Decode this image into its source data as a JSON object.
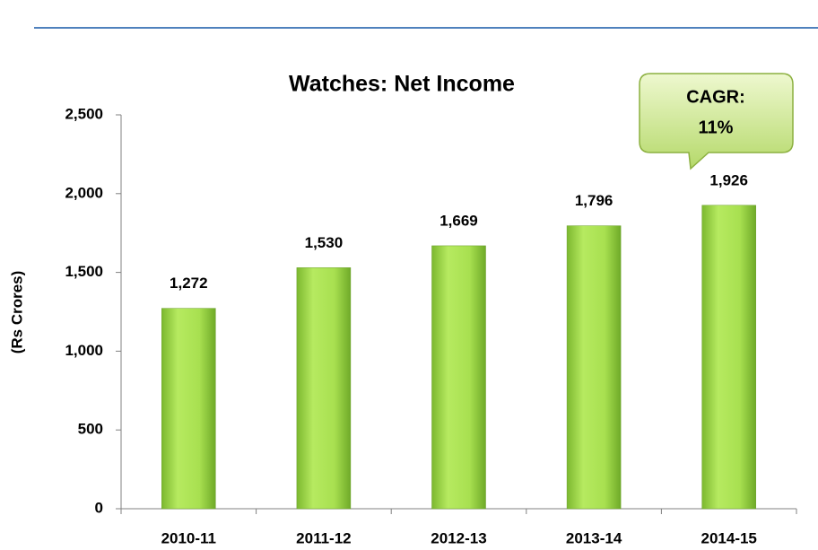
{
  "chart_data": {
    "type": "bar",
    "title": "Watches: Net Income",
    "y_label": "(Rs Crores)",
    "categories": [
      "2010-11",
      "2011-12",
      "2012-13",
      "2013-14",
      "2014-15"
    ],
    "values": [
      1272,
      1530,
      1669,
      1796,
      1926
    ],
    "value_labels": [
      "1,272",
      "1,530",
      "1,669",
      "1,796",
      "1,926"
    ],
    "color": "#9fd94a",
    "ylim": [
      0,
      2500
    ],
    "yticks": [
      0,
      500,
      {
        "value": 1000,
        "label": "1,000"
      },
      {
        "value": 1500,
        "label": "1,500"
      },
      {
        "value": 2000,
        "label": "2,000"
      },
      {
        "value": 2500,
        "label": "2,500"
      }
    ],
    "annotation": [
      "CAGR:",
      "11%"
    ]
  }
}
